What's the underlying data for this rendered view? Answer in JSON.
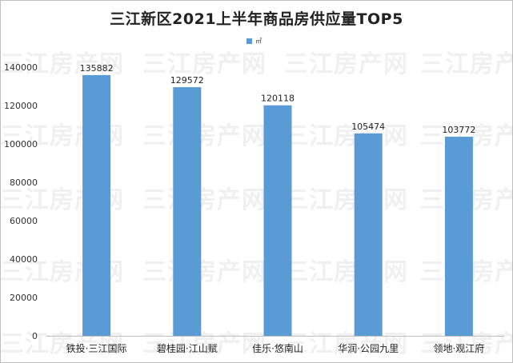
{
  "chart_data": {
    "type": "bar",
    "title": "三江新区2021上半年商品房供应量TOP5",
    "legend": "㎡",
    "categories": [
      "铁投·三江国际",
      "碧桂园·江山赋",
      "佳乐·悠南山",
      "华润·公园九里",
      "领地·观江府"
    ],
    "values": [
      135882,
      129572,
      120118,
      105474,
      103772
    ],
    "data_labels": [
      "135882",
      "129572",
      "120118",
      "105474",
      "103772"
    ],
    "ylim": [
      0,
      140000
    ],
    "yticks": [
      0,
      20000,
      40000,
      60000,
      80000,
      100000,
      120000,
      140000
    ],
    "ytick_labels": [
      "0",
      "20000",
      "40000",
      "60000",
      "80000",
      "100000",
      "120000",
      "140000"
    ],
    "bar_color": "#5b9bd5",
    "grid": false,
    "legend_position": "top"
  },
  "watermark": "三江房产网"
}
